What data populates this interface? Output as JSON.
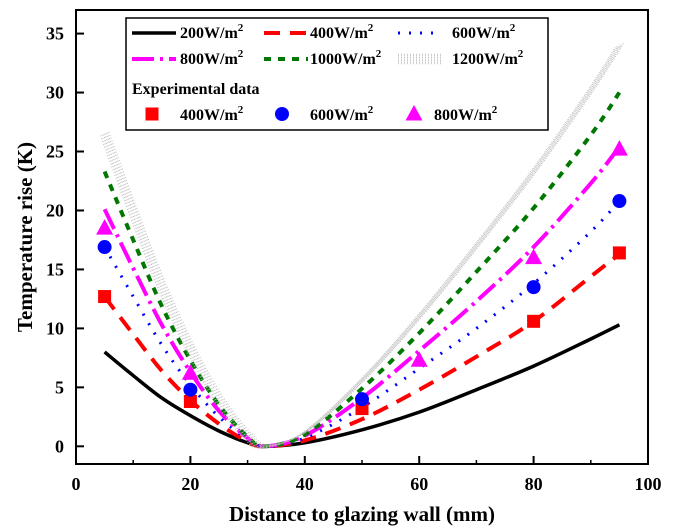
{
  "chart_data": {
    "type": "line",
    "xlabel": "Distance to glazing wall (mm)",
    "ylabel": "Temperature rise (K)",
    "xlim": [
      0,
      100
    ],
    "ylim": [
      -1.5,
      37
    ],
    "xticks": [
      "0",
      "20",
      "40",
      "60",
      "80",
      "100"
    ],
    "yticks": [
      "0",
      "5",
      "10",
      "15",
      "20",
      "25",
      "30",
      "35"
    ],
    "legend_placement": "top-center",
    "legend_subtitle": "Experimental data",
    "series": [
      {
        "name": "200W/m",
        "unit_sup": "2",
        "color": "#000000",
        "style": "solid",
        "x": [
          5,
          10,
          15,
          20,
          25,
          30,
          33,
          40,
          50,
          60,
          70,
          80,
          90,
          95
        ],
        "y": [
          8.0,
          6.0,
          4.1,
          2.6,
          1.3,
          0.3,
          0.0,
          0.3,
          1.4,
          2.9,
          4.8,
          6.8,
          9.1,
          10.3
        ]
      },
      {
        "name": "400W/m",
        "unit_sup": "2",
        "color": "#ff0000",
        "style": "dash",
        "x": [
          5,
          10,
          15,
          20,
          25,
          30,
          33,
          40,
          50,
          60,
          70,
          80,
          90,
          95
        ],
        "y": [
          12.7,
          9.5,
          6.4,
          3.9,
          1.9,
          0.4,
          0.0,
          0.5,
          2.3,
          4.8,
          7.6,
          10.6,
          14.4,
          16.3
        ]
      },
      {
        "name": "600W/m",
        "unit_sup": "2",
        "color": "#0000ff",
        "style": "dot",
        "x": [
          5,
          10,
          15,
          20,
          25,
          30,
          33,
          40,
          50,
          60,
          70,
          80,
          90,
          95
        ],
        "y": [
          16.9,
          12.7,
          8.6,
          5.2,
          2.5,
          0.6,
          0.0,
          0.7,
          3.3,
          6.6,
          10.0,
          13.8,
          18.2,
          20.8
        ]
      },
      {
        "name": "800W/m",
        "unit_sup": "2",
        "color": "#ff00ff",
        "style": "dashdot",
        "x": [
          5,
          10,
          15,
          20,
          25,
          30,
          33,
          40,
          50,
          60,
          70,
          80,
          90,
          95
        ],
        "y": [
          20.1,
          15.1,
          10.3,
          6.3,
          3.0,
          0.7,
          0.0,
          0.9,
          4.1,
          8.1,
          12.3,
          16.9,
          22.3,
          25.4
        ]
      },
      {
        "name": "1000W/m",
        "unit_sup": "2",
        "color": "#007700",
        "style": "shortdash",
        "x": [
          5,
          10,
          15,
          20,
          25,
          30,
          33,
          40,
          50,
          60,
          70,
          80,
          90,
          95
        ],
        "y": [
          23.3,
          17.5,
          11.9,
          7.3,
          3.5,
          0.8,
          0.0,
          1.0,
          4.9,
          9.6,
          14.8,
          20.2,
          26.4,
          30.0
        ]
      },
      {
        "name": "1200W/m",
        "unit_sup": "2",
        "color": "#bbbbbb",
        "style": "finedot",
        "x": [
          5,
          10,
          15,
          20,
          25,
          30,
          33,
          40,
          50,
          60,
          70,
          80,
          90,
          95
        ],
        "y": [
          26.5,
          19.9,
          13.6,
          8.3,
          4.0,
          0.9,
          0.0,
          1.2,
          5.6,
          11.0,
          17.0,
          23.3,
          30.2,
          34.0
        ]
      }
    ],
    "experimental": [
      {
        "name": "400W/m",
        "unit_sup": "2",
        "color": "#ff0000",
        "marker": "square",
        "x": [
          5,
          20,
          50,
          80,
          95
        ],
        "y": [
          12.7,
          3.8,
          3.2,
          10.6,
          16.4
        ]
      },
      {
        "name": "600W/m",
        "unit_sup": "2",
        "color": "#0000ff",
        "marker": "circle",
        "x": [
          5,
          20,
          50,
          80,
          95
        ],
        "y": [
          16.9,
          4.8,
          4.0,
          13.5,
          20.8
        ]
      },
      {
        "name": "800W/m",
        "unit_sup": "2",
        "color": "#ff00ff",
        "marker": "triangle",
        "x": [
          5,
          20,
          60,
          80,
          95
        ],
        "y": [
          18.5,
          6.2,
          7.3,
          16.0,
          25.2
        ]
      }
    ]
  }
}
